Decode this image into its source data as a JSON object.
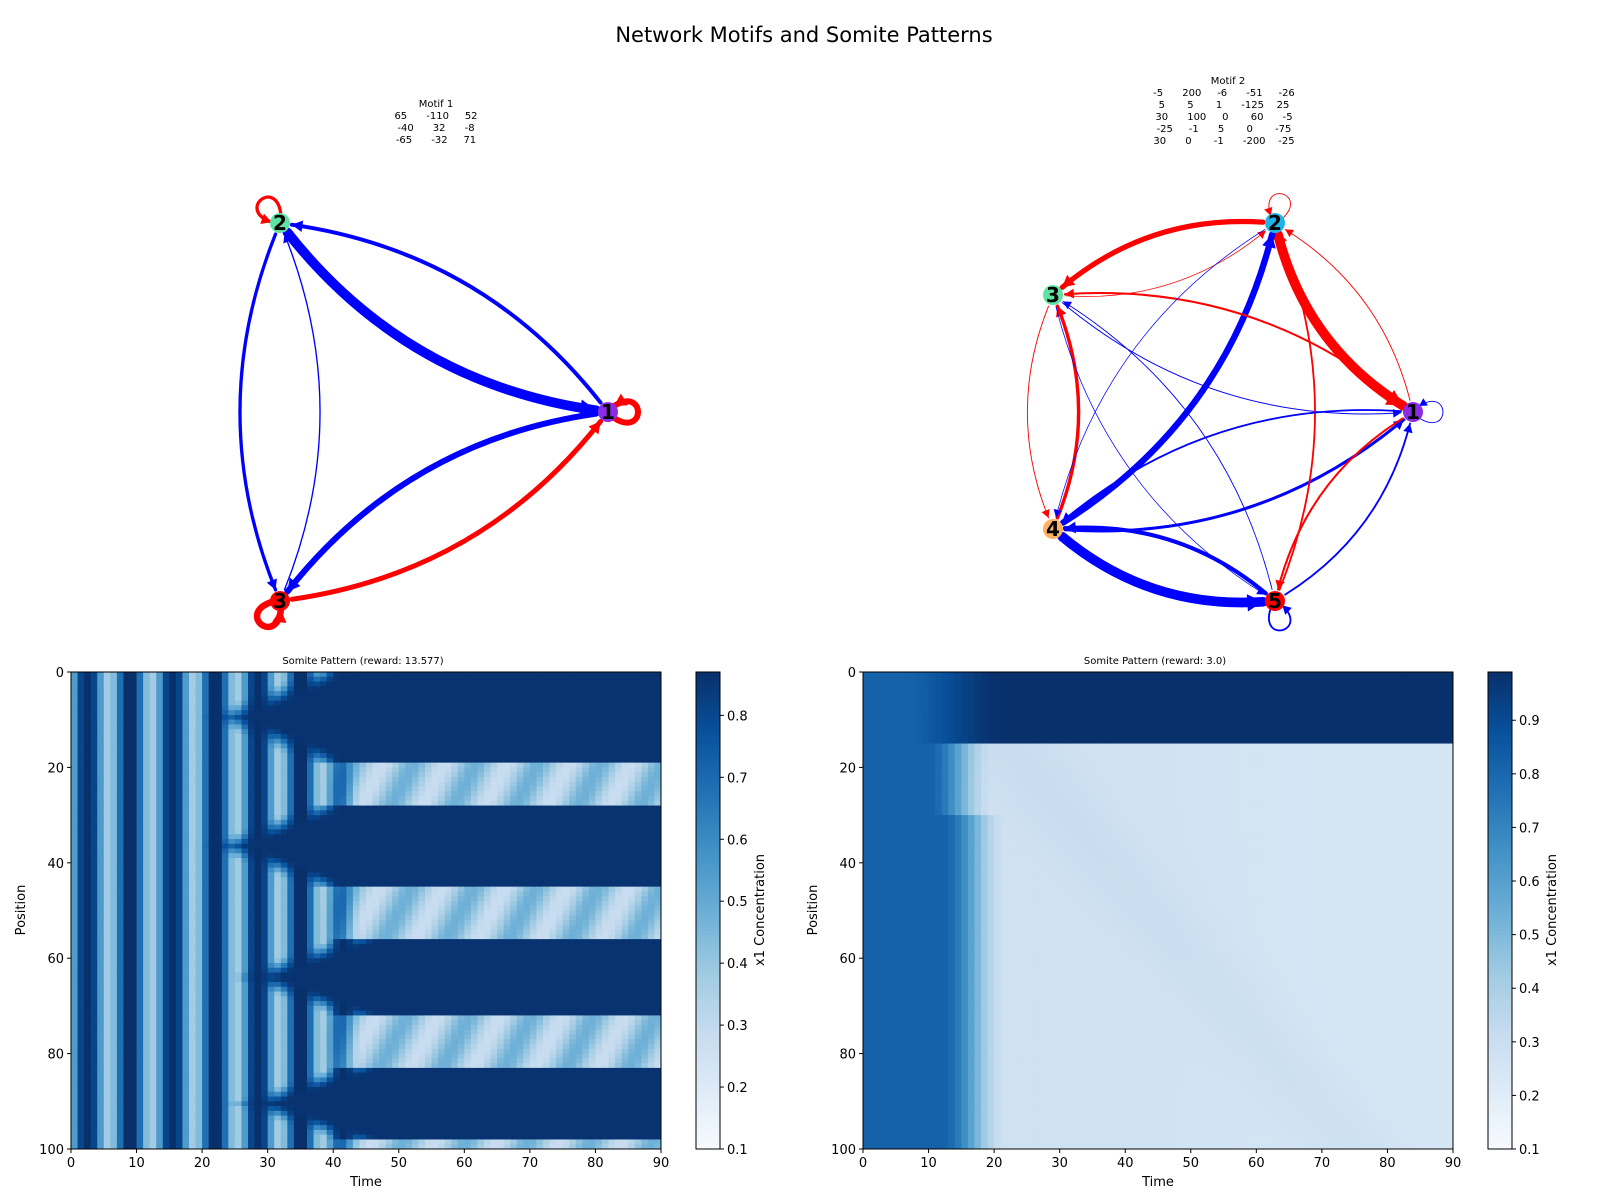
{
  "title": "Network Motifs and Somite Patterns",
  "colors": {
    "positive": "#ff0000",
    "negative": "#0000ff",
    "node_1_1": "#8b2be2",
    "node_1_2": "#5ee3a3",
    "node_1_3": "#ff0000",
    "node_2_1": "#8b2be2",
    "node_2_2": "#1fb4e8",
    "node_2_3": "#5ee3a3",
    "node_2_4": "#ffb060",
    "node_2_5": "#ff0000"
  },
  "chart_data": [
    {
      "type": "network",
      "title": "Motif 1",
      "nodes": [
        "1",
        "2",
        "3"
      ],
      "matrix": [
        [
          65,
          -110,
          52
        ],
        [
          -40,
          32,
          -8
        ],
        [
          -65,
          -32,
          71
        ]
      ],
      "matrix_rows": [
        "65      -110     52",
        "-40      32      -8",
        "-65      -32     71"
      ]
    },
    {
      "type": "network",
      "title": "Motif 2",
      "nodes": [
        "1",
        "2",
        "3",
        "4",
        "5"
      ],
      "matrix": [
        [
          -5,
          200,
          -6,
          -51,
          -26
        ],
        [
          5,
          5,
          1,
          -125,
          25
        ],
        [
          30,
          100,
          0,
          60,
          -5
        ],
        [
          -25,
          -1,
          5,
          0,
          -75
        ],
        [
          30,
          0,
          -1,
          -200,
          -25
        ]
      ],
      "matrix_rows": [
        "-5      200     -6      -51     -26",
        "5       5       1      -125    25",
        "30      100     0       60      -5",
        "-25     -1      5       0       -75",
        "30      0       -1      -200    -25"
      ]
    },
    {
      "type": "heatmap",
      "title": "Somite Pattern (reward: 13.577)",
      "xlabel": "Time",
      "ylabel": "Position",
      "colorbar_label": "x1 Concentration",
      "xlim": [
        0,
        90
      ],
      "ylim": [
        100,
        0
      ],
      "xticks": [
        0,
        10,
        20,
        30,
        40,
        50,
        60,
        70,
        80,
        90
      ],
      "yticks": [
        0,
        20,
        40,
        60,
        80,
        100
      ],
      "clim": [
        0.1,
        0.87
      ],
      "cticks": [
        0.1,
        0.2,
        0.3,
        0.4,
        0.5,
        0.6,
        0.7,
        0.8
      ],
      "colormap": "Blues",
      "somite_bands": [
        [
          0,
          19
        ],
        [
          28,
          45
        ],
        [
          56,
          72
        ],
        [
          83,
          98
        ]
      ],
      "pattern": "Early oscillations in time at all positions (period about 6.5), then high-concentration bands at positions 0-19, 28-45, 56-72, 83-98 form after time about 25-50; between bands the concentration keeps oscillating at about 0.3-0.5."
    },
    {
      "type": "heatmap",
      "title": "Somite Pattern (reward: 3.0)",
      "xlabel": "Time",
      "ylabel": "Position",
      "colorbar_label": "x1 Concentration",
      "xlim": [
        0,
        90
      ],
      "ylim": [
        100,
        0
      ],
      "xticks": [
        0,
        10,
        20,
        30,
        40,
        50,
        60,
        70,
        80,
        90
      ],
      "yticks": [
        0,
        20,
        40,
        60,
        80,
        100
      ],
      "clim": [
        0.1,
        0.99
      ],
      "cticks": [
        0.1,
        0.2,
        0.3,
        0.4,
        0.5,
        0.6,
        0.7,
        0.8,
        0.9
      ],
      "colormap": "Blues",
      "somite_bands": [
        [
          0,
          15
        ]
      ],
      "pattern": "High concentration (about 0.82) at all positions for time below about 15; afterwards a single band at positions 0-15 saturates near 0.99 while the rest decays to about 0.25-0.3 with a faint diagonal front."
    }
  ]
}
